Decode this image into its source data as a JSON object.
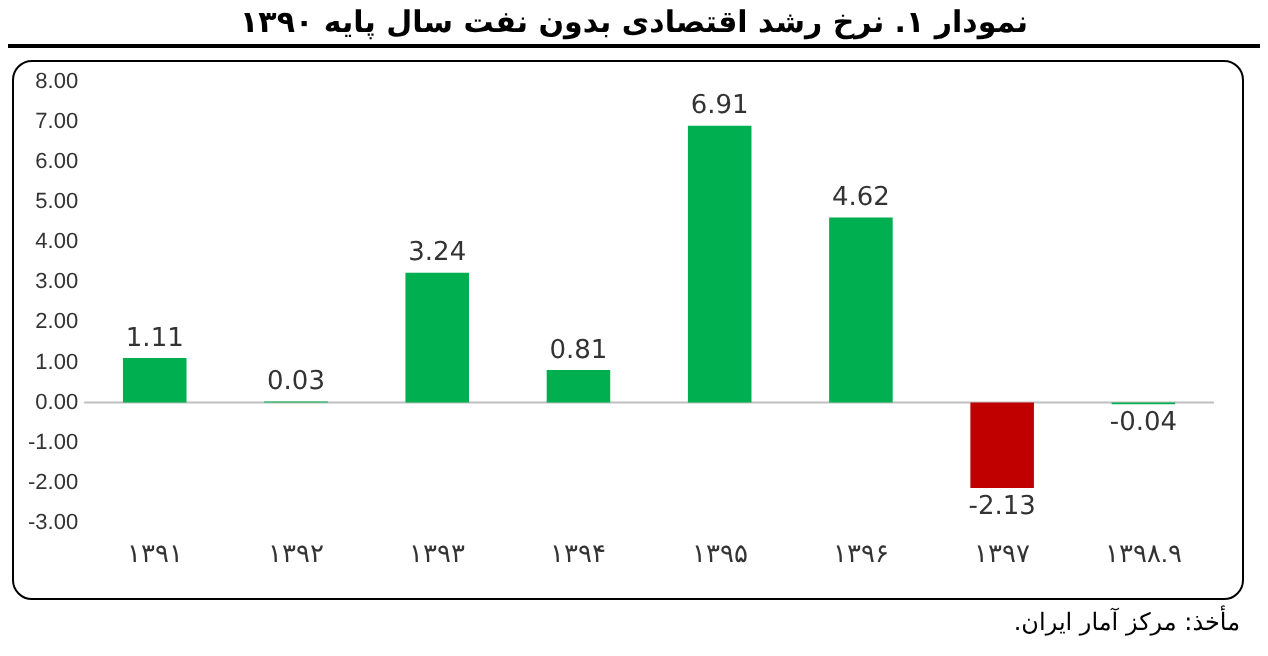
{
  "chart_data": {
    "type": "bar",
    "title": "نمودار ۱. نرخ رشد اقتصادی بدون نفت سال پایه ۱۳۹۰",
    "categories": [
      "۱۳۹۱",
      "۱۳۹۲",
      "۱۳۹۳",
      "۱۳۹۴",
      "۱۳۹۵",
      "۱۳۹۶",
      "۱۳۹۷",
      "۱۳۹۸.۹"
    ],
    "values": [
      1.11,
      0.03,
      3.24,
      0.81,
      6.91,
      4.62,
      -2.13,
      -0.04
    ],
    "colors": [
      "#00b050",
      "#00b050",
      "#00b050",
      "#00b050",
      "#00b050",
      "#00b050",
      "#c00000",
      "#00b050"
    ],
    "ylim": [
      -3,
      8
    ],
    "yticks": [
      {
        "value": -3,
        "label": "-3.00"
      },
      {
        "value": -2,
        "label": "-2.00"
      },
      {
        "value": -1,
        "label": "-1.00"
      },
      {
        "value": 0,
        "label": "0.00"
      },
      {
        "value": 1,
        "label": "1.00"
      },
      {
        "value": 2,
        "label": "2.00"
      },
      {
        "value": 3,
        "label": "3.00"
      },
      {
        "value": 4,
        "label": "4.00"
      },
      {
        "value": 5,
        "label": "5.00"
      },
      {
        "value": 6,
        "label": "6.00"
      },
      {
        "value": 7,
        "label": "7.00"
      },
      {
        "value": 8,
        "label": "8.00"
      }
    ],
    "ref_lines": [
      {
        "axis": "y",
        "value": 0,
        "color": "#bfbfbf"
      }
    ],
    "data_labels": true,
    "grid": false,
    "legend": false,
    "annotations": [
      "مأخذ: مرکز آمار ایران."
    ]
  }
}
